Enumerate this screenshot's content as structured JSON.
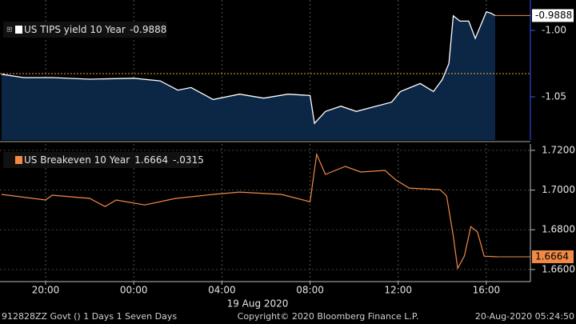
{
  "chart_data": [
    {
      "type": "area",
      "name": "US TIPS yield 10 Year",
      "last_value": -0.9888,
      "color": "#ffffff",
      "fill": "#0c2746",
      "x": [
        -6.0,
        -5.0,
        -3.7,
        -2.0,
        0.0,
        1.2,
        2.0,
        2.6,
        3.6,
        4.8,
        5.9,
        7.0,
        8.0,
        8.2,
        8.7,
        9.4,
        10.1,
        11.0,
        11.7,
        12.1,
        13.0,
        13.6,
        14.0,
        14.3,
        14.5,
        14.8,
        15.2,
        15.5,
        15.7,
        16.0,
        16.2,
        16.4
      ],
      "values": [
        -1.033,
        -1.0355,
        -1.0355,
        -1.0367,
        -1.036,
        -1.038,
        -1.045,
        -1.043,
        -1.052,
        -1.048,
        -1.051,
        -1.048,
        -1.049,
        -1.07,
        -1.061,
        -1.057,
        -1.061,
        -1.057,
        -1.054,
        -1.046,
        -1.04,
        -1.046,
        -1.037,
        -1.025,
        -0.989,
        -0.993,
        -0.993,
        -1.006,
        -0.998,
        -0.986,
        -0.987,
        -0.9888
      ],
      "reference_line": -1.0325,
      "xlim": [
        -6.07,
        18.0
      ],
      "ylim": [
        -1.0825,
        -0.9771
      ],
      "yticks": [
        {
          "value": -1.0,
          "label": "-1.00"
        },
        {
          "value": -1.05,
          "label": "-1.05"
        }
      ]
    },
    {
      "type": "line",
      "name": "US Breakeven 10 Year",
      "last_value": 1.6664,
      "change": {
        "value": -0.0315,
        "label": "-.0315"
      },
      "color": "#f28a46",
      "x": [
        -6.0,
        -4.0,
        -3.7,
        -2.0,
        -1.3,
        -0.8,
        0.5,
        1.9,
        3.6,
        4.8,
        6.7,
        8.0,
        8.3,
        8.7,
        9.6,
        10.3,
        11.4,
        11.9,
        12.5,
        13.9,
        14.2,
        14.5,
        14.7,
        15.0,
        15.3,
        15.6,
        15.9,
        16.5
      ],
      "values": [
        1.6978,
        1.695,
        1.6974,
        1.6958,
        1.6917,
        1.695,
        1.6925,
        1.6958,
        1.6978,
        1.699,
        1.6978,
        1.6941,
        1.718,
        1.7079,
        1.7119,
        1.7091,
        1.7099,
        1.705,
        1.701,
        1.7002,
        1.697,
        1.6768,
        1.6606,
        1.6667,
        1.6816,
        1.6788,
        1.6667,
        1.6664
      ],
      "xlim": [
        -6.07,
        18.0
      ],
      "ylim": [
        1.6539,
        1.7232
      ],
      "xticks": [
        {
          "value": -4,
          "label": "20:00"
        },
        {
          "value": 0,
          "label": "00:00"
        },
        {
          "value": 4,
          "label": "04:00"
        },
        {
          "value": 8,
          "label": "08:00"
        },
        {
          "value": 12,
          "label": "12:00"
        },
        {
          "value": 16,
          "label": "16:00"
        }
      ],
      "date_label": "19 Aug 2020",
      "yticks": [
        {
          "value": 1.72,
          "label": "1.7200"
        },
        {
          "value": 1.7,
          "label": "1.7000"
        },
        {
          "value": 1.68,
          "label": "1.6800"
        },
        {
          "value": 1.66,
          "label": "1.6600"
        }
      ]
    }
  ],
  "footer": {
    "left": "912828ZZ Govt () 1 Days 1 Seven Days",
    "center": "Copyright© 2020 Bloomberg Finance L.P.",
    "right": "20-Aug-2020 05:24:50"
  }
}
